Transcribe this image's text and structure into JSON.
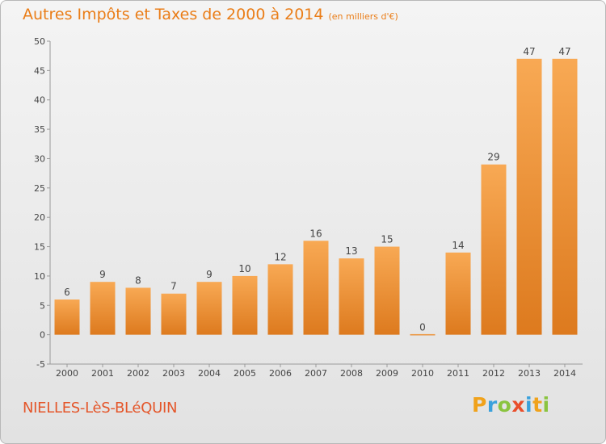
{
  "header": {
    "title": "Autres Impôts et Taxes de 2000 à 2014",
    "unit": "(en milliers d'€)"
  },
  "footer": {
    "town": "NIELLES-LèS-BLéQUIN",
    "logo": [
      "P",
      "r",
      "o",
      "x",
      "i",
      "t",
      "i"
    ]
  },
  "colors": {
    "title": "#ea7d17",
    "town": "#e4562a",
    "bar_light": "#f7a54f",
    "bar_dark": "#dc7a1f"
  },
  "chart_data": {
    "type": "bar",
    "title": "Autres Impôts et Taxes de 2000 à 2014",
    "categories": [
      "2000",
      "2001",
      "2002",
      "2003",
      "2004",
      "2005",
      "2006",
      "2007",
      "2008",
      "2009",
      "2010",
      "2011",
      "2012",
      "2013",
      "2014"
    ],
    "values": [
      6,
      9,
      8,
      7,
      9,
      10,
      12,
      16,
      13,
      15,
      0,
      14,
      29,
      47,
      47
    ],
    "ylim": [
      -5,
      50
    ],
    "yticks": [
      -5,
      0,
      5,
      10,
      15,
      20,
      25,
      30,
      35,
      40,
      45,
      50
    ],
    "xlabel": "",
    "ylabel": "",
    "grid": false,
    "data_labels": true
  }
}
